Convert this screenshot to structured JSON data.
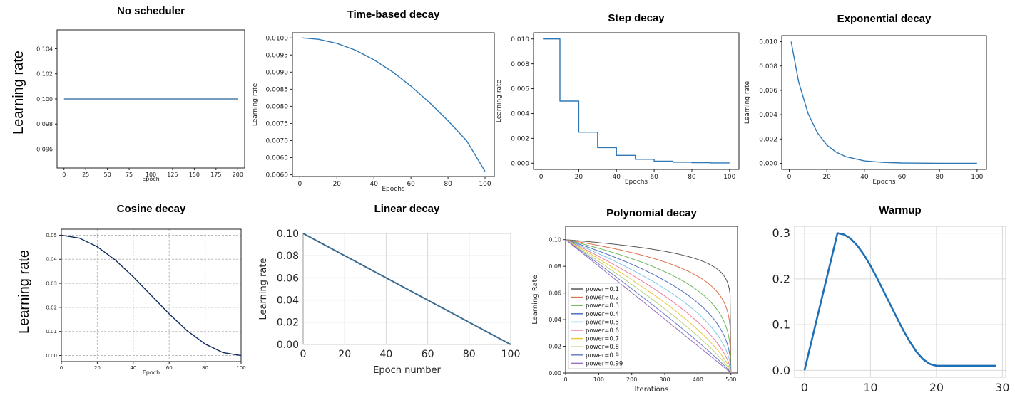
{
  "row_labels": [
    "Learning rate",
    "Learning rate"
  ],
  "chart_data": [
    {
      "type": "line",
      "title": "No scheduler",
      "xlabel": "Epoch",
      "ylabel": "",
      "xlim": [
        -8,
        208
      ],
      "ylim": [
        0.0945,
        0.1055
      ],
      "xticks": [
        0,
        25,
        50,
        75,
        100,
        125,
        150,
        175,
        200
      ],
      "yticks": [
        0.096,
        0.098,
        0.1,
        0.102,
        0.104
      ],
      "ytick_labels": [
        "0.096",
        "0.098",
        "0.100",
        "0.102",
        "0.104"
      ],
      "grid": false,
      "series": [
        {
          "x": [
            0,
            200
          ],
          "y": [
            0.1,
            0.1
          ],
          "color": "#4a7fa8"
        }
      ]
    },
    {
      "type": "line",
      "title": "Time-based decay",
      "xlabel": "Epochs",
      "ylabel": "Learning rate",
      "xlim": [
        -4,
        105
      ],
      "ylim": [
        0.00595,
        0.01015
      ],
      "xticks": [
        0,
        20,
        40,
        60,
        80,
        100
      ],
      "yticks": [
        0.006,
        0.0065,
        0.007,
        0.0075,
        0.008,
        0.0085,
        0.009,
        0.0095,
        0.01
      ],
      "ytick_labels": [
        "0.0060",
        "0.0065",
        "0.0070",
        "0.0075",
        "0.0080",
        "0.0085",
        "0.0090",
        "0.0095",
        "0.0100"
      ],
      "grid": false,
      "series": [
        {
          "x": [
            1,
            10,
            20,
            30,
            40,
            50,
            60,
            70,
            80,
            90,
            100
          ],
          "y": [
            0.01,
            0.00996,
            0.00984,
            0.00964,
            0.00936,
            0.00901,
            0.00859,
            0.00811,
            0.00758,
            0.007,
            0.0061
          ],
          "color": "#2f78b5"
        }
      ]
    },
    {
      "type": "line",
      "title": "Step decay",
      "xlabel": "Epochs",
      "ylabel": "Learning rate",
      "xlim": [
        -4,
        105
      ],
      "ylim": [
        -0.0005,
        0.0105
      ],
      "xticks": [
        0,
        20,
        40,
        60,
        80,
        100
      ],
      "yticks": [
        0,
        0.002,
        0.004,
        0.006,
        0.008,
        0.01
      ],
      "ytick_labels": [
        "0.000",
        "0.002",
        "0.004",
        "0.006",
        "0.008",
        "0.010"
      ],
      "grid": false,
      "series": [
        {
          "x": [
            1,
            10,
            10,
            20,
            20,
            30,
            30,
            40,
            40,
            50,
            50,
            60,
            60,
            70,
            70,
            80,
            80,
            90,
            90,
            100
          ],
          "y": [
            0.01,
            0.01,
            0.005,
            0.005,
            0.0025,
            0.0025,
            0.00125,
            0.00125,
            0.000625,
            0.000625,
            0.0003125,
            0.0003125,
            0.00016,
            0.00016,
            8e-05,
            8e-05,
            4e-05,
            4e-05,
            2e-05,
            2e-05
          ],
          "color": "#2f78b5"
        }
      ]
    },
    {
      "type": "line",
      "title": "Exponential decay",
      "xlabel": "Epochs",
      "ylabel": "Learning rate",
      "xlim": [
        -4,
        105
      ],
      "ylim": [
        -0.0005,
        0.0105
      ],
      "xticks": [
        0,
        20,
        40,
        60,
        80,
        100
      ],
      "yticks": [
        0,
        0.002,
        0.004,
        0.006,
        0.008,
        0.01
      ],
      "ytick_labels": [
        "0.000",
        "0.002",
        "0.004",
        "0.006",
        "0.008",
        "0.010"
      ],
      "grid": false,
      "series": [
        {
          "x": [
            1,
            5,
            10,
            15,
            20,
            25,
            30,
            40,
            50,
            60,
            80,
            100
          ],
          "y": [
            0.01,
            0.0067,
            0.0041,
            0.0025,
            0.0015,
            0.00091,
            0.00055,
            0.0002,
            7.5e-05,
            2.7e-05,
            3.7e-06,
            5e-07
          ],
          "color": "#2f78b5"
        }
      ]
    },
    {
      "type": "line",
      "title": "Cosine decay",
      "xlabel": "Epoch",
      "ylabel": "",
      "xlim": [
        0,
        100
      ],
      "ylim": [
        -0.0025,
        0.0525
      ],
      "xticks": [
        0,
        20,
        40,
        60,
        80,
        100
      ],
      "yticks": [
        0,
        0.01,
        0.02,
        0.03,
        0.04,
        0.05
      ],
      "ytick_labels": [
        "0.00",
        "0.01",
        "0.02",
        "0.03",
        "0.04",
        "0.05"
      ],
      "grid": true,
      "series": [
        {
          "x": [
            0,
            10,
            20,
            30,
            40,
            50,
            60,
            70,
            80,
            90,
            100
          ],
          "y": [
            0.05,
            0.0488,
            0.0452,
            0.0397,
            0.0327,
            0.025,
            0.0173,
            0.0103,
            0.0048,
            0.0012,
            0.0
          ],
          "color": "#0d2a5c"
        }
      ]
    },
    {
      "type": "line",
      "title": "Linear decay",
      "xlabel": "Epoch number",
      "ylabel": "Learning rate",
      "xlim": [
        0,
        100
      ],
      "ylim": [
        0,
        0.1
      ],
      "xticks": [
        0,
        20,
        40,
        60,
        80,
        100
      ],
      "yticks": [
        0,
        0.02,
        0.04,
        0.06,
        0.08,
        0.1
      ],
      "ytick_labels": [
        "0.00",
        "0.02",
        "0.04",
        "0.06",
        "0.08",
        "0.10"
      ],
      "grid": true,
      "series": [
        {
          "x": [
            0,
            100
          ],
          "y": [
            0.1,
            0.0
          ],
          "color": "#3a6a8e"
        }
      ]
    },
    {
      "type": "line",
      "title": "Polynomial decay",
      "xlabel": "Iterations",
      "ylabel": "Learning Rate",
      "xlim": [
        0,
        520
      ],
      "ylim": [
        0,
        0.11
      ],
      "xticks": [
        0,
        100,
        200,
        300,
        400,
        500
      ],
      "yticks": [
        0,
        0.02,
        0.04,
        0.06,
        0.08,
        0.1
      ],
      "ytick_labels": [
        "0.00",
        "0.02",
        "0.04",
        "0.06",
        "0.08",
        "0.10"
      ],
      "grid": false,
      "legend_position": "lower left",
      "formula": "0.1 * (1 - x/500)^power",
      "series": [
        {
          "name": "power=0.1",
          "power": 0.1,
          "color": "#555555"
        },
        {
          "name": "power=0.2",
          "power": 0.2,
          "color": "#e0704a"
        },
        {
          "name": "power=0.3",
          "power": 0.3,
          "color": "#6db85e"
        },
        {
          "name": "power=0.4",
          "power": 0.4,
          "color": "#4a6fc4"
        },
        {
          "name": "power=0.5",
          "power": 0.5,
          "color": "#7fc8e8"
        },
        {
          "name": "power=0.6",
          "power": 0.6,
          "color": "#f07ca0"
        },
        {
          "name": "power=0.7",
          "power": 0.7,
          "color": "#e8c93a"
        },
        {
          "name": "power=0.8",
          "power": 0.8,
          "color": "#b8d27a"
        },
        {
          "name": "power=0.9",
          "power": 0.9,
          "color": "#6a7fc8"
        },
        {
          "name": "power=0.99",
          "power": 0.99,
          "color": "#9a6ec0"
        }
      ]
    },
    {
      "type": "line",
      "title": "Warmup",
      "xlabel": "",
      "ylabel": "",
      "xlim": [
        -1.5,
        30.5
      ],
      "ylim": [
        -0.015,
        0.315
      ],
      "xticks": [
        0,
        10,
        20,
        30
      ],
      "yticks": [
        0,
        0.1,
        0.2,
        0.3
      ],
      "ytick_labels": [
        "0.0",
        "0.1",
        "0.2",
        "0.3"
      ],
      "grid": true,
      "series": [
        {
          "x": [
            0,
            5,
            6,
            7,
            8,
            9,
            10,
            11,
            12,
            13,
            14,
            15,
            16,
            17,
            18,
            19,
            20,
            21,
            22,
            23,
            24,
            25,
            26,
            27,
            28,
            29
          ],
          "y": [
            0.0,
            0.3,
            0.297,
            0.288,
            0.273,
            0.253,
            0.229,
            0.202,
            0.173,
            0.144,
            0.115,
            0.087,
            0.062,
            0.04,
            0.024,
            0.014,
            0.01,
            0.01,
            0.01,
            0.01,
            0.01,
            0.01,
            0.01,
            0.01,
            0.01,
            0.01
          ],
          "color": "#1f6fb4"
        }
      ]
    }
  ]
}
